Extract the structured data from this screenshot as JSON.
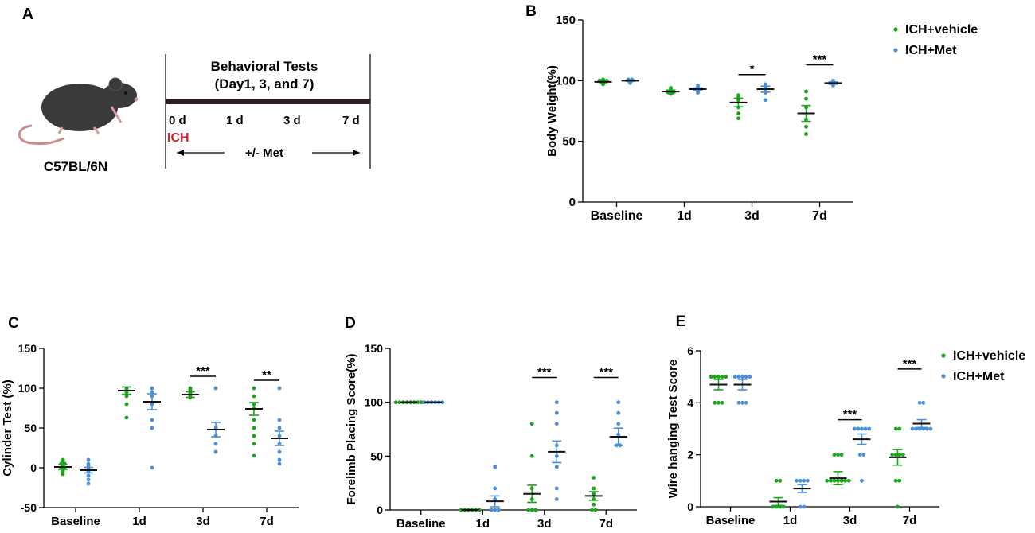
{
  "panel_a": {
    "label": "A",
    "strain": "C57BL/6N",
    "tests_title": "Behavioral Tests",
    "tests_days": "(Day1, 3,  and 7)",
    "timepoints": [
      "0 d",
      "1 d",
      "3 d",
      "7 d"
    ],
    "ich_label": "ICH",
    "treatment": "+/- Met",
    "colors": {
      "ich": "#d6202a",
      "mouse": "#3a3a3a",
      "bar": "#2b1f1d"
    }
  },
  "series_colors": {
    "vehicle": "#1aa51a",
    "met": "#4a90d9"
  },
  "chart_data": [
    {
      "id": "B",
      "panel_label": "B",
      "type": "scatter",
      "ylabel": "Body Weight(%)",
      "xlabel": "",
      "categories": [
        "Baseline",
        "1d",
        "3d",
        "7d"
      ],
      "ylim": [
        0,
        150
      ],
      "yticks": [
        "0",
        "50",
        "100",
        "150"
      ],
      "legend": [
        "ICH+vehicle",
        "ICH+Met"
      ],
      "series": [
        {
          "name": "ICH+vehicle",
          "points": [
            [
              100,
              99,
              98,
              101,
              100,
              99,
              97,
              100
            ],
            [
              91,
              92,
              90,
              89,
              93,
              94,
              90
            ],
            [
              86,
              84,
              78,
              73,
              69,
              88
            ],
            [
              91,
              85,
              78,
              68,
              62,
              56
            ]
          ],
          "mean": [
            99,
            91,
            82,
            73
          ],
          "sem": [
            0.6,
            1.2,
            3.5,
            6.5
          ]
        },
        {
          "name": "ICH+Met",
          "points": [
            [
              101,
              100,
              99,
              100,
              101,
              98
            ],
            [
              95,
              93,
              92,
              91,
              96,
              90
            ],
            [
              97,
              95,
              93,
              90,
              84
            ],
            [
              100,
              98,
              97,
              96,
              99
            ]
          ],
          "mean": [
            100,
            93,
            93,
            98
          ],
          "sem": [
            0.5,
            1.0,
            2.5,
            1.0
          ]
        }
      ],
      "significance": [
        {
          "category": "3d",
          "label": "*",
          "value": 105
        },
        {
          "category": "7d",
          "label": "***",
          "value": 113
        }
      ]
    },
    {
      "id": "C",
      "panel_label": "C",
      "type": "scatter",
      "ylabel": "Cylinder Test (%)",
      "xlabel": "",
      "categories": [
        "Baseline",
        "1d",
        "3d",
        "7d"
      ],
      "ylim": [
        -50,
        150
      ],
      "yticks": [
        "-50",
        "0",
        "50",
        "100",
        "150"
      ],
      "legend": [],
      "series": [
        {
          "name": "ICH+vehicle",
          "points": [
            [
              10,
              8,
              5,
              3,
              0,
              -2,
              -5,
              -8,
              0,
              5,
              -3,
              2
            ],
            [
              100,
              98,
              97,
              96,
              95,
              90,
              80,
              63
            ],
            [
              100,
              98,
              96,
              94,
              92,
              90,
              88
            ],
            [
              100,
              90,
              80,
              75,
              60,
              50,
              40,
              30,
              15
            ]
          ],
          "mean": [
            1,
            97,
            92,
            74
          ],
          "sem": [
            3.0,
            4.5,
            3.5,
            8.0
          ]
        },
        {
          "name": "ICH+Met",
          "points": [
            [
              10,
              5,
              0,
              -5,
              -10,
              -15,
              -20,
              -3,
              2
            ],
            [
              100,
              95,
              90,
              80,
              60,
              50,
              0
            ],
            [
              100,
              50,
              40,
              30,
              20
            ],
            [
              100,
              60,
              50,
              40,
              30,
              20,
              10,
              5
            ]
          ],
          "mean": [
            -3,
            83,
            48,
            37
          ],
          "sem": [
            3.5,
            10,
            9,
            9
          ]
        }
      ],
      "significance": [
        {
          "category": "3d",
          "label": "***",
          "value": 115
        },
        {
          "category": "7d",
          "label": "**",
          "value": 110
        }
      ]
    },
    {
      "id": "D",
      "panel_label": "D",
      "type": "scatter",
      "ylabel": "Forelimb Placing Score(%)",
      "xlabel": "",
      "categories": [
        "Baseline",
        "1d",
        "3d",
        "7d"
      ],
      "ylim": [
        0,
        150
      ],
      "yticks": [
        "0",
        "50",
        "100",
        "150"
      ],
      "legend": [],
      "series": [
        {
          "name": "ICH+vehicle",
          "points": [
            [
              100,
              100,
              100,
              100,
              100,
              100,
              100,
              100
            ],
            [
              0,
              0,
              0,
              0,
              0,
              0
            ],
            [
              80,
              50,
              20,
              10,
              0,
              0,
              0
            ],
            [
              30,
              20,
              15,
              10,
              5,
              0,
              0
            ]
          ],
          "mean": [
            100,
            0,
            15,
            13
          ],
          "sem": [
            0,
            0,
            8,
            4
          ]
        },
        {
          "name": "ICH+Met",
          "points": [
            [
              100,
              100,
              100,
              100,
              100,
              100
            ],
            [
              40,
              20,
              10,
              0,
              0,
              0
            ],
            [
              100,
              90,
              80,
              60,
              50,
              40,
              20,
              10
            ],
            [
              100,
              90,
              80,
              70,
              60,
              60
            ]
          ],
          "mean": [
            100,
            8,
            54,
            68
          ],
          "sem": [
            0,
            5,
            10,
            8
          ]
        }
      ],
      "significance": [
        {
          "category": "3d",
          "label": "***",
          "value": 123
        },
        {
          "category": "7d",
          "label": "***",
          "value": 123
        }
      ]
    },
    {
      "id": "E",
      "panel_label": "E",
      "type": "scatter",
      "ylabel": "Wire hanging Test Score",
      "xlabel": "",
      "categories": [
        "Baseline",
        "1d",
        "3d",
        "7d"
      ],
      "ylim": [
        0,
        6
      ],
      "yticks": [
        "0",
        "2",
        "4",
        "6"
      ],
      "legend": [
        "ICH+vehicle",
        "ICH+Met"
      ],
      "series": [
        {
          "name": "ICH+vehicle",
          "points": [
            [
              5,
              5,
              5,
              5,
              5,
              4,
              4,
              4
            ],
            [
              1,
              1,
              0,
              0,
              0,
              0
            ],
            [
              2,
              2,
              2,
              1,
              1,
              1,
              1,
              1,
              1,
              1
            ],
            [
              3,
              3,
              2,
              2,
              2,
              2,
              1,
              1,
              0
            ]
          ],
          "mean": [
            4.7,
            0.2,
            1.1,
            1.9
          ],
          "sem": [
            0.2,
            0.15,
            0.25,
            0.3
          ]
        },
        {
          "name": "ICH+Met",
          "points": [
            [
              5,
              5,
              5,
              5,
              5,
              4,
              4,
              4
            ],
            [
              1,
              1,
              1,
              1,
              0,
              0
            ],
            [
              3,
              3,
              3,
              3,
              3,
              2,
              2,
              1
            ],
            [
              4,
              4,
              3,
              3,
              3,
              3,
              3,
              3
            ]
          ],
          "mean": [
            4.7,
            0.7,
            2.6,
            3.2
          ],
          "sem": [
            0.2,
            0.15,
            0.2,
            0.15
          ]
        }
      ],
      "significance": [
        {
          "category": "3d",
          "label": "***",
          "value": 3.35
        },
        {
          "category": "7d",
          "label": "***",
          "value": 5.3
        }
      ]
    }
  ]
}
